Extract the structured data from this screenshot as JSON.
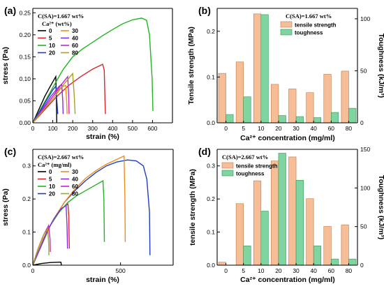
{
  "colors": {
    "0": "#000000",
    "5": "#d9252a",
    "10": "#22b522",
    "20": "#1f3cc8",
    "30": "#f28c1f",
    "40": "#8a2be2",
    "60": "#cc22cc",
    "80": "#a6a21f",
    "ts_fill": "#f5be96",
    "ts_edge": "#c07a45",
    "tg_fill": "#7fd4a0",
    "tg_edge": "#2c9a55"
  },
  "chart_data": [
    {
      "panel": "(a)",
      "type": "line",
      "note": "C(SA)=1.667 wt%",
      "legend_title": "Ca²⁺ (wt%)",
      "legend_placement": "top-left",
      "xlabel": "strain (%)",
      "ylabel": "stress (Pa)",
      "xlim": [
        0,
        700
      ],
      "ylim": [
        0,
        0.26
      ],
      "xticks": [
        0,
        100,
        200,
        300,
        400,
        500,
        600
      ],
      "yticks": [
        0.0,
        0.05,
        0.1,
        0.15,
        0.2,
        0.25
      ],
      "xtick_labels": [
        "0",
        "100",
        "200",
        "300",
        "400",
        "500",
        "600"
      ],
      "ytick_labels": [
        "0.00",
        "0.05",
        "0.10",
        "0.15",
        "0.20",
        "0.25"
      ],
      "series": [
        {
          "name": "0",
          "key": "0",
          "points": [
            [
              0,
              0
            ],
            [
              30,
              0.03
            ],
            [
              60,
              0.06
            ],
            [
              90,
              0.085
            ],
            [
              115,
              0.105
            ],
            [
              118,
              0.06
            ],
            [
              120,
              0.0
            ]
          ]
        },
        {
          "name": "5",
          "key": "5",
          "points": [
            [
              0,
              0
            ],
            [
              60,
              0.03
            ],
            [
              120,
              0.06
            ],
            [
              180,
              0.085
            ],
            [
              240,
              0.105
            ],
            [
              300,
              0.122
            ],
            [
              350,
              0.133
            ],
            [
              358,
              0.12
            ],
            [
              362,
              0.05
            ],
            [
              364,
              0.02
            ]
          ]
        },
        {
          "name": "10",
          "key": "10",
          "points": [
            [
              0,
              0
            ],
            [
              50,
              0.04
            ],
            [
              100,
              0.08
            ],
            [
              150,
              0.12
            ],
            [
              200,
              0.15
            ],
            [
              250,
              0.168
            ],
            [
              300,
              0.183
            ],
            [
              350,
              0.198
            ],
            [
              400,
              0.212
            ],
            [
              450,
              0.225
            ],
            [
              500,
              0.234
            ],
            [
              545,
              0.238
            ],
            [
              570,
              0.233
            ],
            [
              585,
              0.2
            ],
            [
              598,
              0.1
            ],
            [
              602,
              0.027
            ]
          ]
        },
        {
          "name": "20",
          "key": "20",
          "points": [
            [
              0,
              0
            ],
            [
              40,
              0.03
            ],
            [
              80,
              0.06
            ],
            [
              100,
              0.075
            ],
            [
              115,
              0.083
            ],
            [
              122,
              0.04
            ],
            [
              125,
              0.02
            ]
          ]
        },
        {
          "name": "30",
          "key": "30",
          "points": [
            [
              0,
              0
            ],
            [
              50,
              0.03
            ],
            [
              100,
              0.06
            ],
            [
              140,
              0.08
            ],
            [
              165,
              0.085
            ],
            [
              170,
              0.045
            ],
            [
              172,
              0.02
            ]
          ]
        },
        {
          "name": "40",
          "key": "40",
          "points": [
            [
              0,
              0
            ],
            [
              45,
              0.03
            ],
            [
              90,
              0.06
            ],
            [
              130,
              0.082
            ],
            [
              145,
              0.088
            ],
            [
              150,
              0.05
            ],
            [
              152,
              0.02
            ]
          ]
        },
        {
          "name": "60",
          "key": "60",
          "points": [
            [
              0,
              0
            ],
            [
              50,
              0.03
            ],
            [
              100,
              0.06
            ],
            [
              140,
              0.085
            ],
            [
              175,
              0.105
            ],
            [
              180,
              0.06
            ],
            [
              182,
              0.02
            ]
          ]
        },
        {
          "name": "80",
          "key": "80",
          "points": [
            [
              0,
              0
            ],
            [
              55,
              0.03
            ],
            [
              110,
              0.06
            ],
            [
              160,
              0.09
            ],
            [
              200,
              0.112
            ],
            [
              208,
              0.06
            ],
            [
              212,
              0.02
            ]
          ]
        }
      ]
    },
    {
      "panel": "(b)",
      "type": "bar",
      "note": "C(SA)=1.667 wt%",
      "legend_placement": "top-right",
      "categories": [
        "0",
        "5",
        "10",
        "20",
        "30",
        "40",
        "60",
        "80"
      ],
      "xlabel": "Ca²⁺ concentration (mg/ml)",
      "ylabel_left": "Tensile strength (MPa)",
      "ylabel_right": "Toughness (kJ/m³)",
      "ylim_left": [
        0,
        0.25
      ],
      "ylim_right": [
        0,
        110
      ],
      "yticks_left": [
        0.0,
        0.1,
        0.2
      ],
      "ytick_labels_left": [
        "0.0",
        "0.1",
        "0.2"
      ],
      "yticks_right": [
        0,
        50,
        100
      ],
      "ytick_labels_right": [
        "0",
        "50",
        "100"
      ],
      "series": [
        {
          "name": "tensile strength",
          "axis": "left",
          "key": "ts",
          "values": [
            0.108,
            0.133,
            0.238,
            0.084,
            0.074,
            0.066,
            0.106,
            0.113
          ]
        },
        {
          "name": "toughness",
          "axis": "right",
          "key": "tg",
          "values": [
            8,
            25,
            104,
            7,
            6,
            5,
            10,
            14
          ]
        }
      ]
    },
    {
      "panel": "(c)",
      "type": "line",
      "note": "C(SA)=2.667 wt%",
      "legend_title": "Ca²⁺ (mg/ml)",
      "legend_placement": "top-left",
      "xlabel": "strain (%)",
      "ylabel": "stress (Pa)",
      "xlim": [
        0,
        800
      ],
      "ylim": [
        0,
        0.35
      ],
      "xticks": [
        0,
        500
      ],
      "yticks": [
        0.0,
        0.1,
        0.2,
        0.3
      ],
      "xtick_labels": [
        "0",
        "500"
      ],
      "ytick_labels": [
        "0.0",
        "0.1",
        "0.2",
        "0.3"
      ],
      "series": [
        {
          "name": "0",
          "key": "0",
          "points": [
            [
              0,
              0
            ],
            [
              50,
              0.005
            ],
            [
              100,
              0.008
            ],
            [
              150,
              0.009
            ],
            [
              160,
              0.009
            ],
            [
              163,
              0.0
            ]
          ]
        },
        {
          "name": "5",
          "key": "5",
          "points": [
            [
              0,
              0
            ],
            [
              40,
              0.05
            ],
            [
              80,
              0.1
            ],
            [
              120,
              0.14
            ],
            [
              160,
              0.17
            ],
            [
              200,
              0.185
            ],
            [
              205,
              0.15
            ],
            [
              208,
              0.05
            ]
          ]
        },
        {
          "name": "10",
          "key": "10",
          "points": [
            [
              0,
              0
            ],
            [
              50,
              0.06
            ],
            [
              100,
              0.12
            ],
            [
              150,
              0.16
            ],
            [
              200,
              0.19
            ],
            [
              250,
              0.21
            ],
            [
              300,
              0.225
            ],
            [
              350,
              0.24
            ],
            [
              400,
              0.255
            ],
            [
              405,
              0.2
            ],
            [
              408,
              0.07
            ]
          ]
        },
        {
          "name": "20",
          "key": "20",
          "points": [
            [
              0,
              0
            ],
            [
              60,
              0.08
            ],
            [
              120,
              0.14
            ],
            [
              180,
              0.19
            ],
            [
              240,
              0.225
            ],
            [
              300,
              0.255
            ],
            [
              360,
              0.28
            ],
            [
              420,
              0.3
            ],
            [
              480,
              0.312
            ],
            [
              540,
              0.318
            ],
            [
              590,
              0.315
            ],
            [
              630,
              0.3
            ],
            [
              650,
              0.26
            ],
            [
              665,
              0.16
            ],
            [
              668,
              0.03
            ]
          ]
        },
        {
          "name": "30",
          "key": "30",
          "points": [
            [
              0,
              0
            ],
            [
              60,
              0.08
            ],
            [
              120,
              0.14
            ],
            [
              180,
              0.19
            ],
            [
              240,
              0.23
            ],
            [
              300,
              0.262
            ],
            [
              360,
              0.286
            ],
            [
              420,
              0.305
            ],
            [
              480,
              0.32
            ],
            [
              520,
              0.33
            ],
            [
              525,
              0.2
            ],
            [
              527,
              0.07
            ]
          ]
        },
        {
          "name": "40",
          "key": "40",
          "points": [
            [
              0,
              0
            ],
            [
              40,
              0.05
            ],
            [
              80,
              0.1
            ],
            [
              120,
              0.14
            ],
            [
              160,
              0.17
            ],
            [
              190,
              0.18
            ],
            [
              195,
              0.12
            ],
            [
              198,
              0.05
            ]
          ]
        },
        {
          "name": "60",
          "key": "60",
          "points": [
            [
              0,
              0
            ],
            [
              30,
              0.05
            ],
            [
              60,
              0.09
            ],
            [
              90,
              0.12
            ],
            [
              98,
              0.08
            ],
            [
              100,
              0.04
            ]
          ]
        },
        {
          "name": "80",
          "key": "80",
          "points": [
            [
              0,
              0
            ],
            [
              30,
              0.05
            ],
            [
              60,
              0.09
            ],
            [
              85,
              0.11
            ],
            [
              90,
              0.07
            ],
            [
              92,
              0.03
            ]
          ]
        }
      ]
    },
    {
      "panel": "(d)",
      "type": "bar",
      "note": "C(SA)=2.667 wt%",
      "legend_placement": "top-left",
      "categories": [
        "0",
        "5",
        "10",
        "20",
        "30",
        "40",
        "60",
        "80"
      ],
      "xlabel": "Ca²⁺ concentration (mg/ml)",
      "ylabel_left": "tensile strength (MPa)",
      "ylabel_right": "Toughness (kJ/m³)",
      "ylim_left": [
        0,
        0.35
      ],
      "ylim_right": [
        0,
        150
      ],
      "yticks_left": [
        0.0,
        0.1,
        0.2,
        0.3
      ],
      "ytick_labels_left": [
        "0.0",
        "0.1",
        "0.2",
        "0.3"
      ],
      "yticks_right": [
        0,
        50,
        100,
        150
      ],
      "ytick_labels_right": [
        "0",
        "50",
        "100",
        "150"
      ],
      "series": [
        {
          "name": "tensile strength",
          "axis": "left",
          "key": "ts",
          "values": [
            0.009,
            0.186,
            0.255,
            0.315,
            0.327,
            0.201,
            0.117,
            0.122
          ]
        },
        {
          "name": "toughness",
          "axis": "right",
          "key": "tg",
          "values": [
            0,
            25,
            70,
            145,
            110,
            25,
            8,
            8
          ]
        }
      ]
    }
  ]
}
